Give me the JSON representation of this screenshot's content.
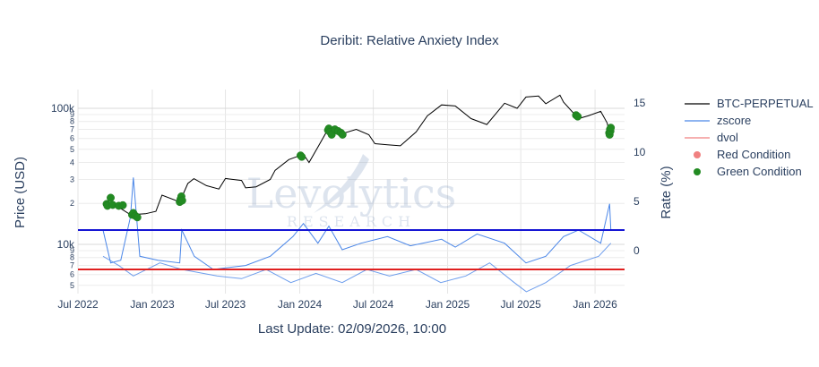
{
  "chart_data": {
    "type": "line",
    "title": "Deribit: Relative Anxiety Index",
    "xlabel": "Last Update: 02/09/2026, 10:00",
    "ylabel": "Price (USD)",
    "y2label": "Rate (%)",
    "watermark": {
      "main": "Levolytics",
      "sub": "RESEARCH"
    },
    "x_ticks": [
      "Jul 2022",
      "Jan 2023",
      "Jul 2023",
      "Jan 2024",
      "Jul 2024",
      "Jan 2025",
      "Jul 2025",
      "Jan 2026"
    ],
    "y_scale": "log",
    "y_major_ticks": [
      {
        "value": 100000,
        "label": "100k"
      },
      {
        "value": 10000,
        "label": "10k"
      }
    ],
    "y_minor_ticks": [
      {
        "value": 90000,
        "label": "9"
      },
      {
        "value": 80000,
        "label": "8"
      },
      {
        "value": 70000,
        "label": "7"
      },
      {
        "value": 60000,
        "label": "6"
      },
      {
        "value": 50000,
        "label": "5"
      },
      {
        "value": 40000,
        "label": "4"
      },
      {
        "value": 30000,
        "label": "3"
      },
      {
        "value": 20000,
        "label": "2"
      },
      {
        "value": 9000,
        "label": "9"
      },
      {
        "value": 8000,
        "label": "8"
      },
      {
        "value": 7000,
        "label": "7"
      },
      {
        "value": 6000,
        "label": "6"
      },
      {
        "value": 5000,
        "label": "5"
      }
    ],
    "y2_ticks": [
      15,
      10,
      5,
      0
    ],
    "series": [
      {
        "name": "BTC-PERPETUAL",
        "color": "#000000",
        "points": [
          [
            "2022-09-01",
            20000
          ],
          [
            "2022-10-01",
            19500
          ],
          [
            "2022-11-08",
            16500
          ],
          [
            "2022-12-15",
            16800
          ],
          [
            "2023-01-10",
            17500
          ],
          [
            "2023-01-25",
            23000
          ],
          [
            "2023-03-10",
            20500
          ],
          [
            "2023-03-30",
            28000
          ],
          [
            "2023-04-14",
            30400
          ],
          [
            "2023-05-15",
            27000
          ],
          [
            "2023-06-15",
            25500
          ],
          [
            "2023-07-01",
            30500
          ],
          [
            "2023-08-10",
            29500
          ],
          [
            "2023-08-20",
            26000
          ],
          [
            "2023-09-15",
            26500
          ],
          [
            "2023-10-20",
            30000
          ],
          [
            "2023-11-01",
            35000
          ],
          [
            "2023-12-05",
            42000
          ],
          [
            "2024-01-10",
            46000
          ],
          [
            "2024-01-24",
            40000
          ],
          [
            "2024-02-15",
            52000
          ],
          [
            "2024-03-13",
            72000
          ],
          [
            "2024-04-15",
            65000
          ],
          [
            "2024-05-20",
            70000
          ],
          [
            "2024-06-20",
            64000
          ],
          [
            "2024-07-05",
            55000
          ],
          [
            "2024-08-05",
            54000
          ],
          [
            "2024-09-06",
            53000
          ],
          [
            "2024-10-15",
            67000
          ],
          [
            "2024-11-12",
            88000
          ],
          [
            "2024-12-17",
            106000
          ],
          [
            "2025-01-20",
            104000
          ],
          [
            "2025-02-28",
            84000
          ],
          [
            "2025-04-08",
            76000
          ],
          [
            "2025-05-22",
            109000
          ],
          [
            "2025-06-22",
            100000
          ],
          [
            "2025-07-14",
            121000
          ],
          [
            "2025-08-14",
            123000
          ],
          [
            "2025-09-01",
            108000
          ],
          [
            "2025-10-06",
            125000
          ],
          [
            "2025-10-15",
            111000
          ],
          [
            "2025-11-21",
            84000
          ],
          [
            "2025-12-15",
            88000
          ],
          [
            "2026-01-15",
            95000
          ],
          [
            "2026-01-31",
            78000
          ],
          [
            "2026-02-06",
            65000
          ],
          [
            "2026-02-09",
            70000
          ]
        ]
      },
      {
        "name": "zscore",
        "color": "#4a86e8",
        "points": [
          [
            "2022-09-01",
            1.5
          ],
          [
            "2022-09-20",
            -1.0
          ],
          [
            "2022-10-15",
            -0.8
          ],
          [
            "2022-11-08",
            2.5
          ],
          [
            "2022-11-15",
            5.5
          ],
          [
            "2022-12-01",
            -0.5
          ],
          [
            "2023-01-15",
            -0.8
          ],
          [
            "2023-03-10",
            -1.0
          ],
          [
            "2023-03-15",
            1.5
          ],
          [
            "2023-04-15",
            -0.5
          ],
          [
            "2023-06-01",
            -1.5
          ],
          [
            "2023-08-20",
            -1.2
          ],
          [
            "2023-10-20",
            -0.5
          ],
          [
            "2023-12-15",
            1.0
          ],
          [
            "2024-01-10",
            2.0
          ],
          [
            "2024-02-15",
            0.5
          ],
          [
            "2024-03-13",
            1.8
          ],
          [
            "2024-04-15",
            0.0
          ],
          [
            "2024-06-01",
            0.5
          ],
          [
            "2024-08-05",
            1.0
          ],
          [
            "2024-10-01",
            0.3
          ],
          [
            "2024-12-17",
            0.8
          ],
          [
            "2025-01-20",
            0.2
          ],
          [
            "2025-03-15",
            1.2
          ],
          [
            "2025-05-22",
            0.5
          ],
          [
            "2025-07-14",
            -1.0
          ],
          [
            "2025-09-01",
            -0.5
          ],
          [
            "2025-10-15",
            1.0
          ],
          [
            "2025-11-21",
            1.5
          ],
          [
            "2026-01-15",
            0.5
          ],
          [
            "2026-02-06",
            3.5
          ],
          [
            "2026-02-09",
            1.5
          ]
        ],
        "low": [
          [
            "2022-09-01",
            -0.5
          ],
          [
            "2022-10-10",
            -1.2
          ],
          [
            "2022-11-15",
            -2.0
          ],
          [
            "2023-01-20",
            -1.0
          ],
          [
            "2023-03-15",
            -1.5
          ],
          [
            "2023-06-10",
            -2.0
          ],
          [
            "2023-08-10",
            -2.2
          ],
          [
            "2023-10-10",
            -1.5
          ],
          [
            "2023-12-10",
            -2.5
          ],
          [
            "2024-02-10",
            -1.8
          ],
          [
            "2024-04-15",
            -2.5
          ],
          [
            "2024-06-15",
            -1.5
          ],
          [
            "2024-08-10",
            -2.0
          ],
          [
            "2024-10-15",
            -1.5
          ],
          [
            "2024-12-15",
            -2.5
          ],
          [
            "2025-02-15",
            -2.0
          ],
          [
            "2025-04-15",
            -1.0
          ],
          [
            "2025-06-15",
            -2.5
          ],
          [
            "2025-07-15",
            -3.2
          ],
          [
            "2025-09-01",
            -2.5
          ],
          [
            "2025-11-01",
            -1.2
          ],
          [
            "2026-01-10",
            -0.5
          ],
          [
            "2026-02-09",
            0.5
          ]
        ]
      }
    ],
    "hlines": [
      {
        "name": "upper",
        "value": 1.5,
        "color": "#1515d4"
      },
      {
        "name": "lower",
        "value": -1.5,
        "color": "#e02020"
      }
    ],
    "legend": [
      {
        "name": "BTC-PERPETUAL",
        "symbol": "line",
        "color": "#000000",
        "muted": false
      },
      {
        "name": "zscore",
        "symbol": "line",
        "color": "#4a86e8",
        "muted": false
      },
      {
        "name": "dvol",
        "symbol": "line",
        "color": "#f08080",
        "muted": true
      },
      {
        "name": "Red Condition",
        "symbol": "dot",
        "color": "#f08080",
        "muted": true
      },
      {
        "name": "Green Condition",
        "symbol": "dot",
        "color": "#228b22",
        "muted": false
      }
    ],
    "green_condition": [
      [
        "2022-09-10",
        19800
      ],
      [
        "2022-09-12",
        19200
      ],
      [
        "2022-09-20",
        22000
      ],
      [
        "2022-09-25",
        19500
      ],
      [
        "2022-10-10",
        19200
      ],
      [
        "2022-10-20",
        19400
      ],
      [
        "2022-11-12",
        16500
      ],
      [
        "2022-11-15",
        17000
      ],
      [
        "2022-11-20",
        16200
      ],
      [
        "2022-11-25",
        15800
      ],
      [
        "2023-03-10",
        20500
      ],
      [
        "2023-03-12",
        21500
      ],
      [
        "2023-03-14",
        22500
      ],
      [
        "2023-03-16",
        21000
      ],
      [
        "2024-01-03",
        45000
      ],
      [
        "2024-01-06",
        44000
      ],
      [
        "2024-03-11",
        69000
      ],
      [
        "2024-03-13",
        71000
      ],
      [
        "2024-03-16",
        67000
      ],
      [
        "2024-03-20",
        64000
      ],
      [
        "2024-03-28",
        70000
      ],
      [
        "2024-04-05",
        68000
      ],
      [
        "2024-04-12",
        66000
      ],
      [
        "2024-04-16",
        64000
      ],
      [
        "2025-11-15",
        89000
      ],
      [
        "2025-11-19",
        87000
      ],
      [
        "2026-02-05",
        66000
      ],
      [
        "2026-02-06",
        64000
      ],
      [
        "2026-02-07",
        70000
      ],
      [
        "2026-02-08",
        68000
      ],
      [
        "2026-02-09",
        72000
      ]
    ]
  }
}
